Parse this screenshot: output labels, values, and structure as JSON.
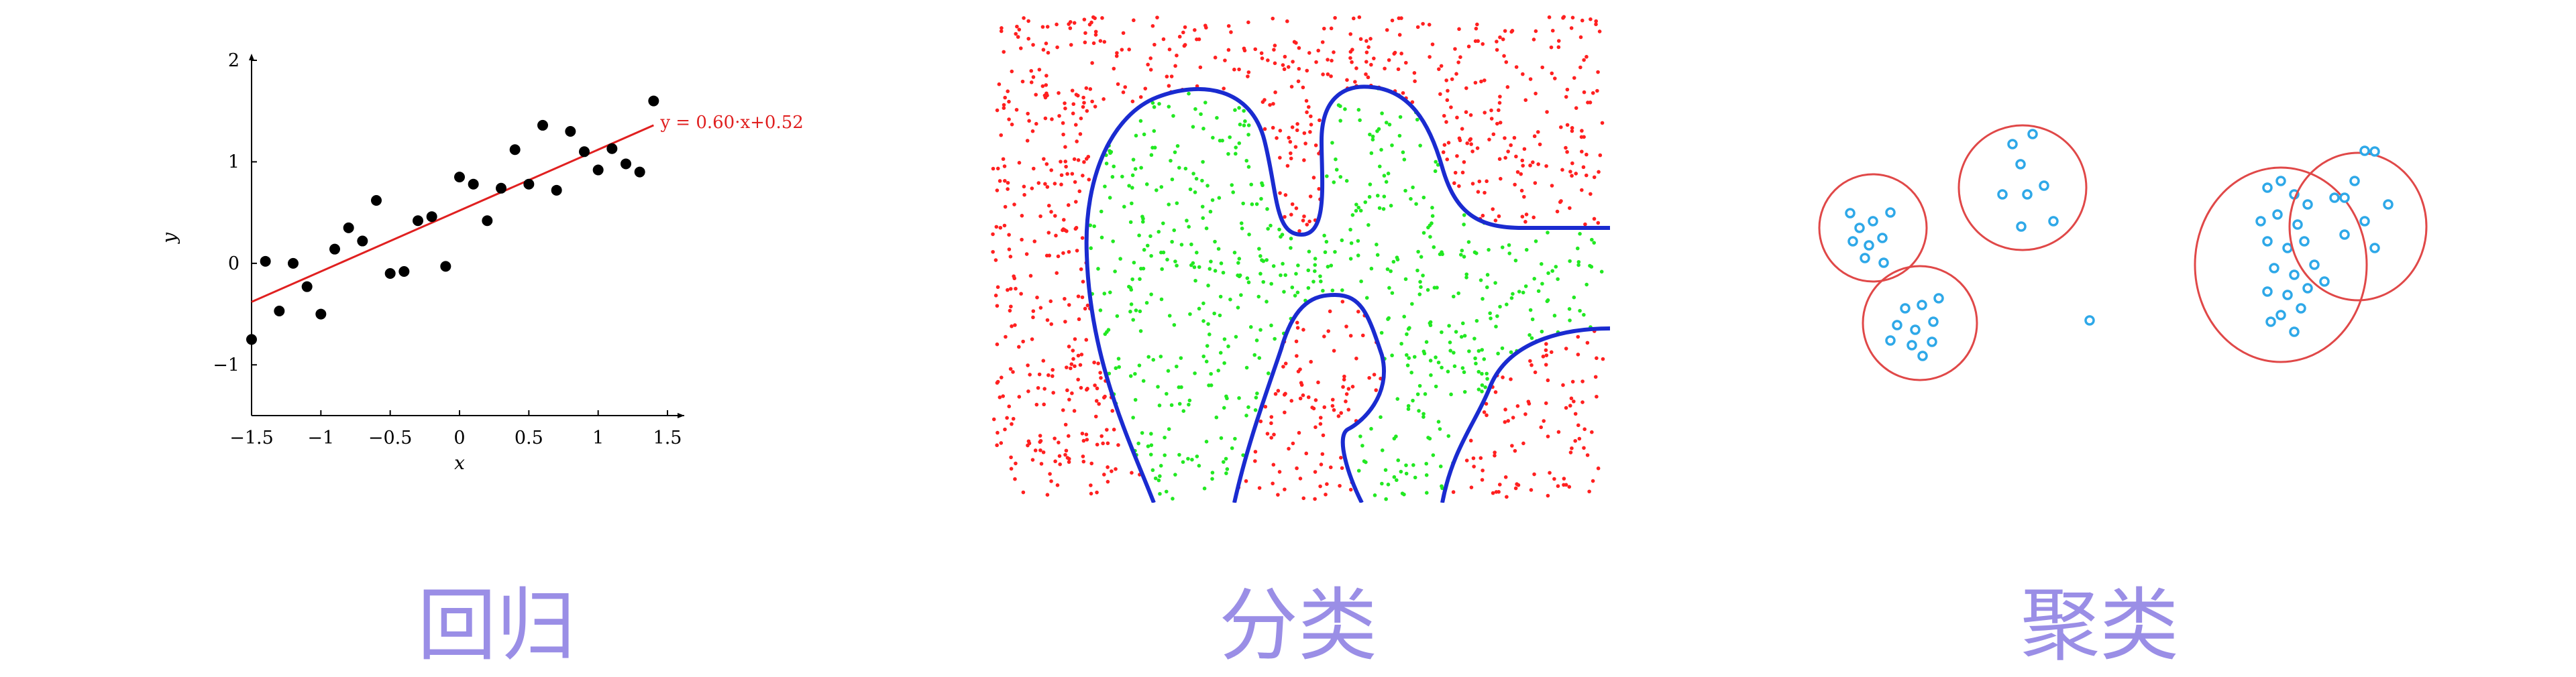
{
  "captions": [
    "回归",
    "分类",
    "聚类"
  ],
  "chart_data": [
    {
      "type": "scatter",
      "title": "",
      "xlabel": "x",
      "ylabel": "y",
      "xlim": [
        -1.5,
        1.5
      ],
      "ylim": [
        -1.5,
        2
      ],
      "xticks": [
        "−1.5",
        "−1",
        "−0.5",
        "0",
        "0.5",
        "1",
        "1.5"
      ],
      "xtick_values": [
        -1.5,
        -1,
        -0.5,
        0,
        0.5,
        1,
        1.5
      ],
      "yticks": [
        "2",
        "1",
        "0",
        "−1"
      ],
      "ytick_values": [
        2,
        1,
        0,
        -1
      ],
      "points": [
        [
          -1.5,
          -0.75
        ],
        [
          -1.4,
          0.02
        ],
        [
          -1.3,
          -0.47
        ],
        [
          -1.2,
          0.0
        ],
        [
          -1.1,
          -0.23
        ],
        [
          -1.0,
          -0.5
        ],
        [
          -0.9,
          0.14
        ],
        [
          -0.8,
          0.35
        ],
        [
          -0.7,
          0.22
        ],
        [
          -0.6,
          0.62
        ],
        [
          -0.5,
          -0.1
        ],
        [
          -0.4,
          -0.08
        ],
        [
          -0.3,
          0.42
        ],
        [
          -0.2,
          0.46
        ],
        [
          -0.1,
          -0.03
        ],
        [
          0.0,
          0.85
        ],
        [
          0.1,
          0.78
        ],
        [
          0.2,
          0.42
        ],
        [
          0.3,
          0.74
        ],
        [
          0.4,
          1.12
        ],
        [
          0.5,
          0.78
        ],
        [
          0.6,
          1.36
        ],
        [
          0.7,
          0.72
        ],
        [
          0.8,
          1.3
        ],
        [
          0.9,
          1.1
        ],
        [
          1.0,
          0.92
        ],
        [
          1.1,
          1.13
        ],
        [
          1.2,
          0.98
        ],
        [
          1.3,
          0.9
        ],
        [
          1.4,
          1.6
        ]
      ],
      "fit": {
        "slope": 0.6,
        "intercept": 0.52,
        "label": "y = 0.60·x+0.52",
        "color": "#e02020"
      },
      "point_color": "#000000"
    },
    {
      "type": "scatter",
      "title": "",
      "classes": [
        {
          "color": "#ff2020"
        },
        {
          "color": "#22e822"
        }
      ],
      "boundary_color": "#1a2bd0"
    },
    {
      "type": "scatter",
      "title": "",
      "cluster_circle_color": "#e04848",
      "point_color": "#2ea8e8",
      "clusters": [
        {
          "center": [
            0.078,
            0.33
          ],
          "r": [
            0.082,
            0.2
          ],
          "points": [
            [
              0.043,
              0.17
            ],
            [
              0.073,
              0.2
            ],
            [
              0.113,
              0.15
            ],
            [
              0.053,
              0.27
            ],
            [
              0.093,
              0.27
            ],
            [
              0.033,
              0.33
            ],
            [
              0.063,
              0.35
            ],
            [
              0.103,
              0.35
            ],
            [
              0.053,
              0.42
            ],
            [
              0.083,
              0.45
            ]
          ]
        },
        {
          "center": [
            0.14,
            0.72
          ],
          "r": [
            0.082,
            0.2
          ],
          "points": [
            [
              0.113,
              0.56
            ],
            [
              0.153,
              0.56
            ],
            [
              0.133,
              0.63
            ],
            [
              0.163,
              0.63
            ],
            [
              0.093,
              0.68
            ],
            [
              0.133,
              0.7
            ],
            [
              0.173,
              0.7
            ],
            [
              0.113,
              0.77
            ],
            [
              0.153,
              0.78
            ],
            [
              0.093,
              0.86
            ],
            [
              0.133,
              0.86
            ]
          ]
        },
        {
          "center": [
            0.22,
            0.2
          ],
          "r": [
            0.095,
            0.2
          ],
          "points": [
            [
              0.213,
              0.01
            ],
            [
              0.193,
              0.1
            ],
            [
              0.233,
              0.1
            ],
            [
              0.153,
              0.17
            ],
            [
              0.183,
              0.17
            ],
            [
              0.263,
              0.17
            ],
            [
              0.283,
              0.31
            ]
          ]
        },
        {
          "center": [
            0.4,
            0.43
          ],
          "r": [
            0.12,
            0.43
          ],
          "points": [
            [
              0.36,
              0.12
            ],
            [
              0.39,
              0.12
            ],
            [
              0.32,
              0.2
            ],
            [
              0.35,
              0.2
            ],
            [
              0.39,
              0.2
            ],
            [
              0.33,
              0.28
            ],
            [
              0.37,
              0.28
            ],
            [
              0.38,
              0.36
            ],
            [
              0.34,
              0.43
            ],
            [
              0.37,
              0.47
            ],
            [
              0.41,
              0.49
            ],
            [
              0.39,
              0.55
            ],
            [
              0.43,
              0.57
            ],
            [
              0.36,
              0.58
            ],
            [
              0.34,
              0.62
            ],
            [
              0.38,
              0.62
            ],
            [
              0.43,
              0.62
            ],
            [
              0.4,
              0.67
            ],
            [
              0.35,
              0.71
            ],
            [
              0.39,
              0.75
            ],
            [
              0.36,
              0.8
            ],
            [
              0.46,
              0.12
            ]
          ]
        },
        {
          "center": [
            0.56,
            0.3
          ],
          "r": [
            0.098,
            0.32
          ],
          "points": [
            [
              0.56,
              0.01
            ],
            [
              0.52,
              0.2
            ],
            [
              0.57,
              0.2
            ],
            [
              0.61,
              0.22
            ],
            [
              0.53,
              0.26
            ],
            [
              0.52,
              0.38
            ],
            [
              0.58,
              0.38
            ]
          ]
        }
      ],
      "outliers": [
        [
          0.19,
          0.67
        ]
      ]
    }
  ]
}
